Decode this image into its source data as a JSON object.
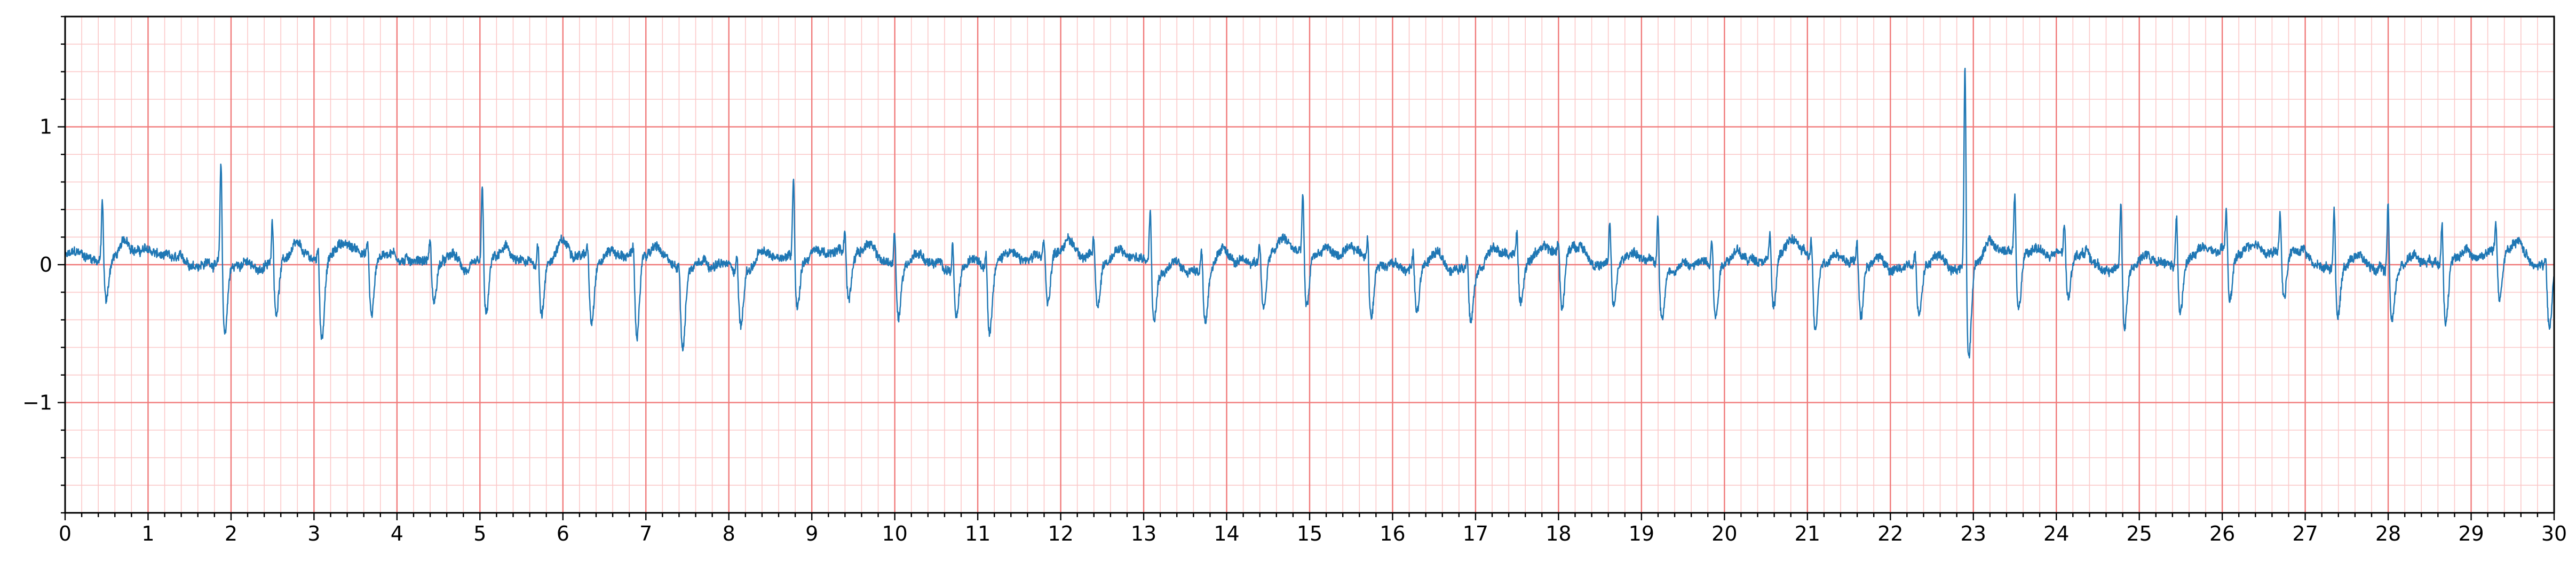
{
  "chart_data": {
    "type": "line",
    "title": "",
    "xlabel": "",
    "ylabel": "",
    "xlim": [
      0,
      30
    ],
    "ylim": [
      -1.8,
      1.8
    ],
    "x_ticks": [
      "0",
      "1",
      "2",
      "3",
      "4",
      "5",
      "6",
      "7",
      "8",
      "9",
      "10",
      "11",
      "12",
      "13",
      "14",
      "15",
      "16",
      "17",
      "18",
      "19",
      "20",
      "21",
      "22",
      "23",
      "24",
      "25",
      "26",
      "27",
      "28",
      "29",
      "30"
    ],
    "y_ticks": [
      "1",
      "0",
      "−1"
    ],
    "grid": {
      "major": true,
      "minor": true,
      "major_step_x": 1,
      "minor_step_x": 0.2,
      "major_step_y": 1,
      "minor_step_y": 0.2
    },
    "colors": {
      "major_grid": "#f07a7a",
      "minor_grid": "#fbc8c8",
      "signal": "#1f77b4",
      "axes": "#000000"
    },
    "series": [
      {
        "beats": [
          [
            0.45,
            0.5,
            -0.3
          ],
          [
            1.88,
            0.87,
            -0.5
          ],
          [
            2.5,
            0.42,
            -0.35
          ],
          [
            3.05,
            0.25,
            -0.55
          ],
          [
            3.65,
            0.2,
            -0.45
          ],
          [
            4.4,
            0.25,
            -0.3
          ],
          [
            5.03,
            0.65,
            -0.4
          ],
          [
            5.7,
            0.25,
            -0.35
          ],
          [
            6.3,
            0.2,
            -0.45
          ],
          [
            6.85,
            0.2,
            -0.6
          ],
          [
            7.4,
            0.22,
            -0.55
          ],
          [
            8.1,
            0.22,
            -0.4
          ],
          [
            8.78,
            0.68,
            -0.35
          ],
          [
            9.4,
            0.25,
            -0.35
          ],
          [
            10.0,
            0.35,
            -0.4
          ],
          [
            10.7,
            0.28,
            -0.35
          ],
          [
            11.1,
            0.25,
            -0.45
          ],
          [
            11.8,
            0.2,
            -0.35
          ],
          [
            12.4,
            0.22,
            -0.35
          ],
          [
            13.08,
            0.5,
            -0.35
          ],
          [
            13.7,
            0.25,
            -0.4
          ],
          [
            14.4,
            0.25,
            -0.35
          ],
          [
            14.92,
            0.55,
            -0.4
          ],
          [
            15.7,
            0.28,
            -0.4
          ],
          [
            16.25,
            0.2,
            -0.35
          ],
          [
            16.9,
            0.2,
            -0.35
          ],
          [
            17.5,
            0.3,
            -0.35
          ],
          [
            18.0,
            0.2,
            -0.4
          ],
          [
            18.62,
            0.4,
            -0.3
          ],
          [
            19.2,
            0.45,
            -0.35
          ],
          [
            19.85,
            0.3,
            -0.4
          ],
          [
            20.55,
            0.3,
            -0.4
          ],
          [
            21.05,
            0.28,
            -0.55
          ],
          [
            21.6,
            0.25,
            -0.4
          ],
          [
            22.3,
            0.2,
            -0.35
          ],
          [
            22.9,
            1.67,
            -0.68
          ],
          [
            23.5,
            0.52,
            -0.4
          ],
          [
            24.1,
            0.3,
            -0.35
          ],
          [
            24.78,
            0.6,
            -0.45
          ],
          [
            25.45,
            0.45,
            -0.35
          ],
          [
            26.05,
            0.4,
            -0.35
          ],
          [
            26.7,
            0.35,
            -0.35
          ],
          [
            27.35,
            0.55,
            -0.35
          ],
          [
            28.0,
            0.6,
            -0.35
          ],
          [
            28.65,
            0.45,
            -0.4
          ],
          [
            29.3,
            0.3,
            -0.35
          ],
          [
            29.9,
            0.15,
            -0.5
          ]
        ]
      }
    ]
  }
}
